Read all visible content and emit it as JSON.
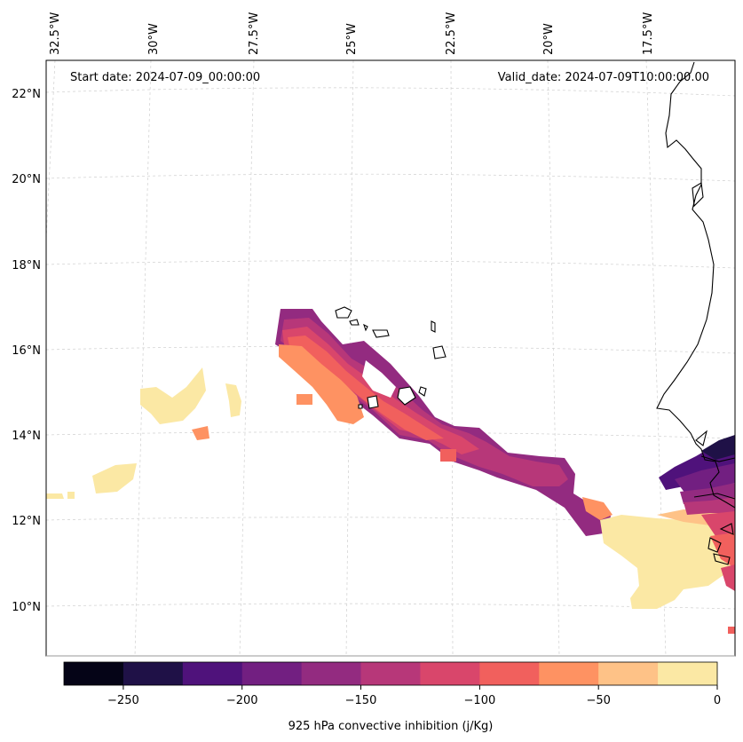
{
  "map": {
    "start_date": "Start date: 2024-07-09_00:00:00",
    "valid_date": "Valid_date: 2024-07-09T10:00:00.00",
    "lon_labels": [
      "32.5°W",
      "30°W",
      "27.5°W",
      "25°W",
      "22.5°W",
      "20°W",
      "17.5°W"
    ],
    "lat_labels": [
      "22°N",
      "20°N",
      "18°N",
      "16°N",
      "14°N",
      "12°N",
      "10°N"
    ]
  },
  "colorbar": {
    "title": "925 hPa convective inhibition (j/Kg)",
    "tick_labels": [
      "−250",
      "−200",
      "−150",
      "−100",
      "−50",
      "0"
    ],
    "colors": [
      "#050417",
      "#1f1147",
      "#4f127b",
      "#721f81",
      "#932b80",
      "#b73779",
      "#d9466b",
      "#f1605d",
      "#fe9262",
      "#fec287",
      "#fbe8a4"
    ]
  }
}
